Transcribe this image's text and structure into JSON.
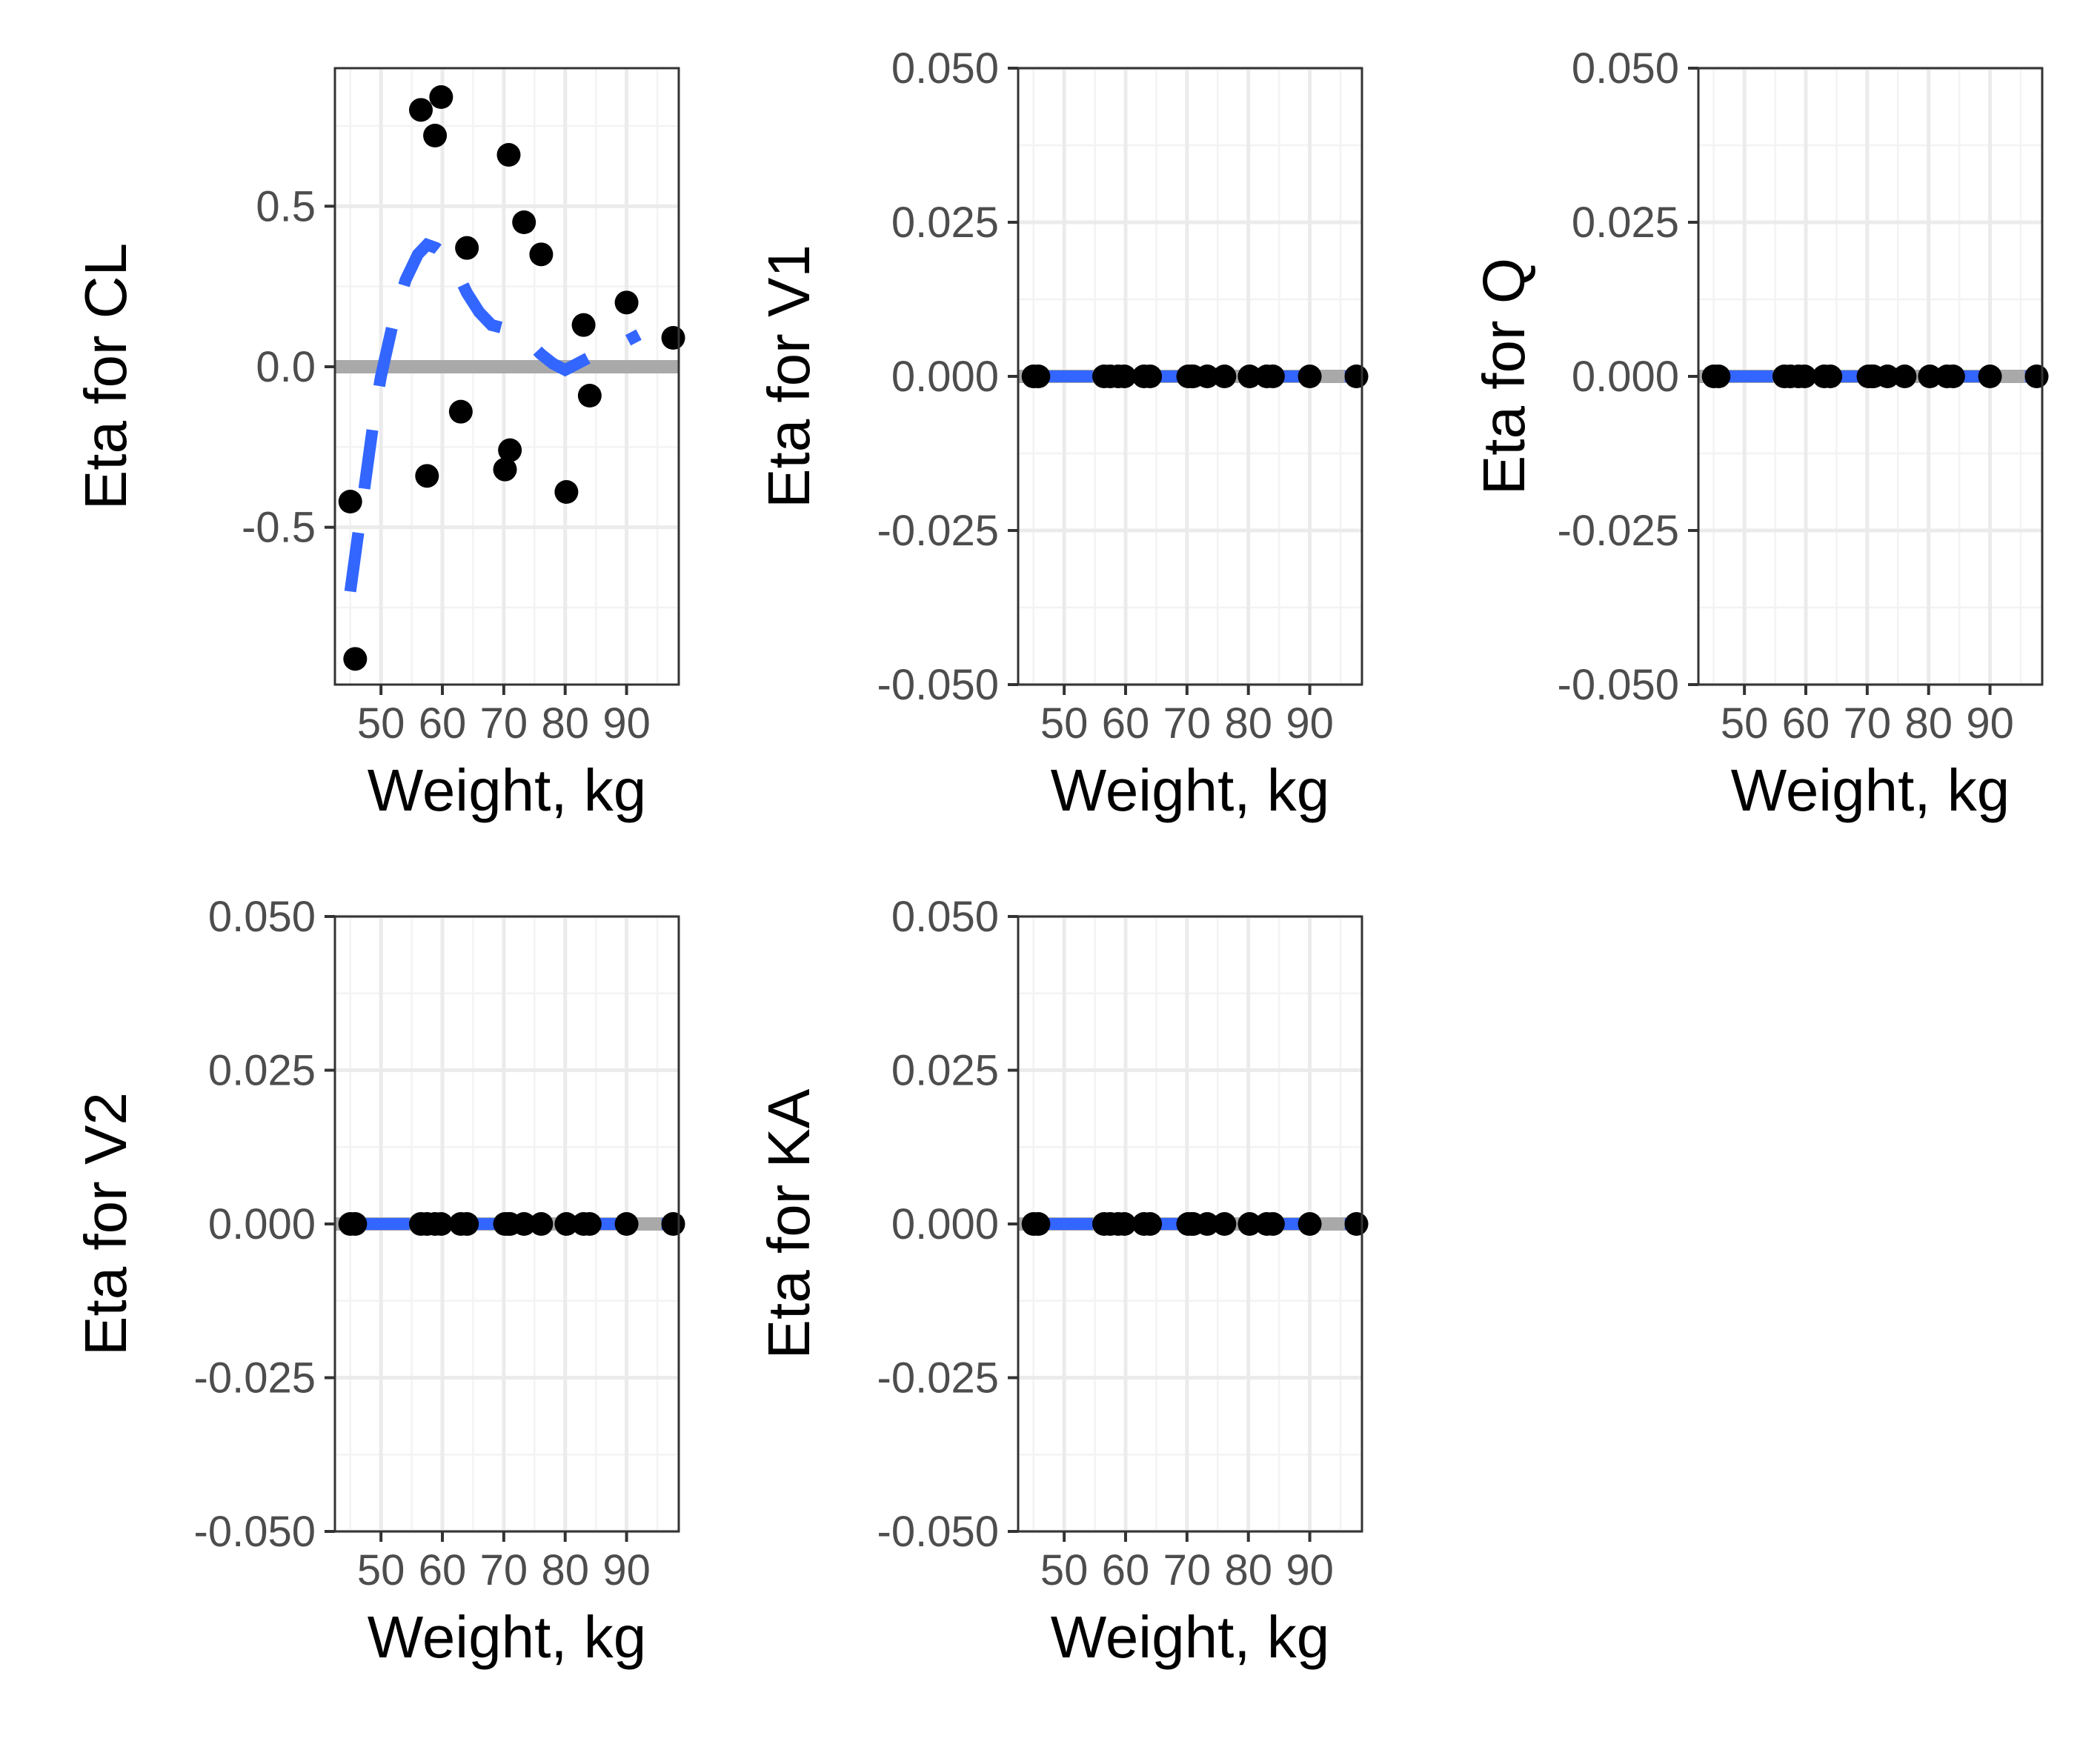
{
  "colors": {
    "background": "#ffffff",
    "grid_major": "#ebebeb",
    "grid_minor": "#f3f3f3",
    "panel_border": "#333333",
    "tick_label": "#4d4d4d",
    "reference_line": "#a9a9a9",
    "smooth_line": "#3366ff",
    "points": "#000000"
  },
  "chart_data": [
    {
      "type": "scatter",
      "title": "",
      "xlabel": "Weight, kg",
      "ylabel": "Eta for CL",
      "xlim": [
        42.5,
        98.5
      ],
      "ylim": [
        -0.99,
        0.93
      ],
      "x_ticks": [
        50,
        60,
        70,
        80,
        90
      ],
      "x_tick_labels": [
        "50",
        "60",
        "70",
        "80",
        "90"
      ],
      "y_ticks": [
        -0.5,
        0.0,
        0.5
      ],
      "y_tick_labels": [
        "-0.5",
        "0.0",
        "0.5"
      ],
      "reference_y": 0,
      "grid": true,
      "points": {
        "x": [
          45.0,
          45.8,
          56.5,
          57.5,
          58.8,
          59.8,
          63.0,
          64.0,
          70.2,
          70.8,
          71.0,
          73.3,
          76.1,
          80.2,
          83.0,
          84.0,
          90.0,
          97.6
        ],
        "y": [
          -0.42,
          -0.91,
          0.8,
          -0.34,
          0.72,
          0.84,
          -0.14,
          0.37,
          -0.32,
          0.66,
          -0.26,
          0.45,
          0.35,
          -0.39,
          0.13,
          -0.09,
          0.2,
          0.09
        ]
      },
      "smooth": {
        "linestyle": "dashed",
        "x": [
          45,
          46,
          47,
          48,
          49,
          50,
          52,
          54,
          56,
          57.5,
          59,
          61,
          62.5,
          64,
          66,
          68,
          70,
          72,
          74,
          76,
          78,
          80,
          82,
          84,
          86,
          88,
          90,
          92
        ],
        "y": [
          -0.7,
          -0.56,
          -0.42,
          -0.28,
          -0.14,
          -0.03,
          0.14,
          0.27,
          0.35,
          0.38,
          0.37,
          0.34,
          0.29,
          0.23,
          0.17,
          0.13,
          0.12,
          0.11,
          0.08,
          0.04,
          0.01,
          -0.01,
          0.01,
          0.03,
          0.05,
          0.06,
          0.08,
          0.1
        ]
      }
    },
    {
      "type": "scatter",
      "title": "",
      "xlabel": "Weight, kg",
      "ylabel": "Eta for V1",
      "xlim": [
        42.5,
        98.5
      ],
      "ylim": [
        -0.05,
        0.05
      ],
      "x_ticks": [
        50,
        60,
        70,
        80,
        90
      ],
      "x_tick_labels": [
        "50",
        "60",
        "70",
        "80",
        "90"
      ],
      "y_ticks": [
        -0.05,
        -0.025,
        0.0,
        0.025,
        0.05
      ],
      "y_tick_labels": [
        "-0.050",
        "-0.025",
        "0.000",
        "0.025",
        "0.050"
      ],
      "reference_y": 0,
      "grid": true,
      "points": {
        "x": [
          45.0,
          45.8,
          56.5,
          57.5,
          58.8,
          59.8,
          63.0,
          64.0,
          70.2,
          70.8,
          71.0,
          73.3,
          76.1,
          80.2,
          83.0,
          84.0,
          90.0,
          97.6
        ],
        "y": [
          0,
          0,
          0,
          0,
          0,
          0,
          0,
          0,
          0,
          0,
          0,
          0,
          0,
          0,
          0,
          0,
          0,
          0
        ]
      },
      "smooth": {
        "linestyle": "dashed",
        "x": [
          45,
          97.6
        ],
        "y": [
          0,
          0
        ]
      }
    },
    {
      "type": "scatter",
      "title": "",
      "xlabel": "Weight, kg",
      "ylabel": "Eta for Q",
      "xlim": [
        42.5,
        98.5
      ],
      "ylim": [
        -0.05,
        0.05
      ],
      "x_ticks": [
        50,
        60,
        70,
        80,
        90
      ],
      "x_tick_labels": [
        "50",
        "60",
        "70",
        "80",
        "90"
      ],
      "y_ticks": [
        -0.05,
        -0.025,
        0.0,
        0.025,
        0.05
      ],
      "y_tick_labels": [
        "-0.050",
        "-0.025",
        "0.000",
        "0.025",
        "0.050"
      ],
      "reference_y": 0,
      "grid": true,
      "points": {
        "x": [
          45.0,
          45.8,
          56.5,
          57.5,
          58.8,
          59.8,
          63.0,
          64.0,
          70.2,
          70.8,
          71.0,
          73.3,
          76.1,
          80.2,
          83.0,
          84.0,
          90.0,
          97.6
        ],
        "y": [
          0,
          0,
          0,
          0,
          0,
          0,
          0,
          0,
          0,
          0,
          0,
          0,
          0,
          0,
          0,
          0,
          0,
          0
        ]
      },
      "smooth": {
        "linestyle": "dashed",
        "x": [
          45,
          97.6
        ],
        "y": [
          0,
          0
        ]
      }
    },
    {
      "type": "scatter",
      "title": "",
      "xlabel": "Weight, kg",
      "ylabel": "Eta for V2",
      "xlim": [
        42.5,
        98.5
      ],
      "ylim": [
        -0.05,
        0.05
      ],
      "x_ticks": [
        50,
        60,
        70,
        80,
        90
      ],
      "x_tick_labels": [
        "50",
        "60",
        "70",
        "80",
        "90"
      ],
      "y_ticks": [
        -0.05,
        -0.025,
        0.0,
        0.025,
        0.05
      ],
      "y_tick_labels": [
        "-0.050",
        "-0.025",
        "0.000",
        "0.025",
        "0.050"
      ],
      "reference_y": 0,
      "grid": true,
      "points": {
        "x": [
          45.0,
          45.8,
          56.5,
          57.5,
          58.8,
          59.8,
          63.0,
          64.0,
          70.2,
          70.8,
          71.0,
          73.3,
          76.1,
          80.2,
          83.0,
          84.0,
          90.0,
          97.6
        ],
        "y": [
          0,
          0,
          0,
          0,
          0,
          0,
          0,
          0,
          0,
          0,
          0,
          0,
          0,
          0,
          0,
          0,
          0,
          0
        ]
      },
      "smooth": {
        "linestyle": "dashed",
        "x": [
          45,
          97.6
        ],
        "y": [
          0,
          0
        ]
      }
    },
    {
      "type": "scatter",
      "title": "",
      "xlabel": "Weight, kg",
      "ylabel": "Eta for KA",
      "xlim": [
        42.5,
        98.5
      ],
      "ylim": [
        -0.05,
        0.05
      ],
      "x_ticks": [
        50,
        60,
        70,
        80,
        90
      ],
      "x_tick_labels": [
        "50",
        "60",
        "70",
        "80",
        "90"
      ],
      "y_ticks": [
        -0.05,
        -0.025,
        0.0,
        0.025,
        0.05
      ],
      "y_tick_labels": [
        "-0.050",
        "-0.025",
        "0.000",
        "0.025",
        "0.050"
      ],
      "reference_y": 0,
      "grid": true,
      "points": {
        "x": [
          45.0,
          45.8,
          56.5,
          57.5,
          58.8,
          59.8,
          63.0,
          64.0,
          70.2,
          70.8,
          71.0,
          73.3,
          76.1,
          80.2,
          83.0,
          84.0,
          90.0,
          97.6
        ],
        "y": [
          0,
          0,
          0,
          0,
          0,
          0,
          0,
          0,
          0,
          0,
          0,
          0,
          0,
          0,
          0,
          0,
          0,
          0
        ]
      },
      "smooth": {
        "linestyle": "dashed",
        "x": [
          45,
          97.6
        ],
        "y": [
          0,
          0
        ]
      }
    }
  ]
}
